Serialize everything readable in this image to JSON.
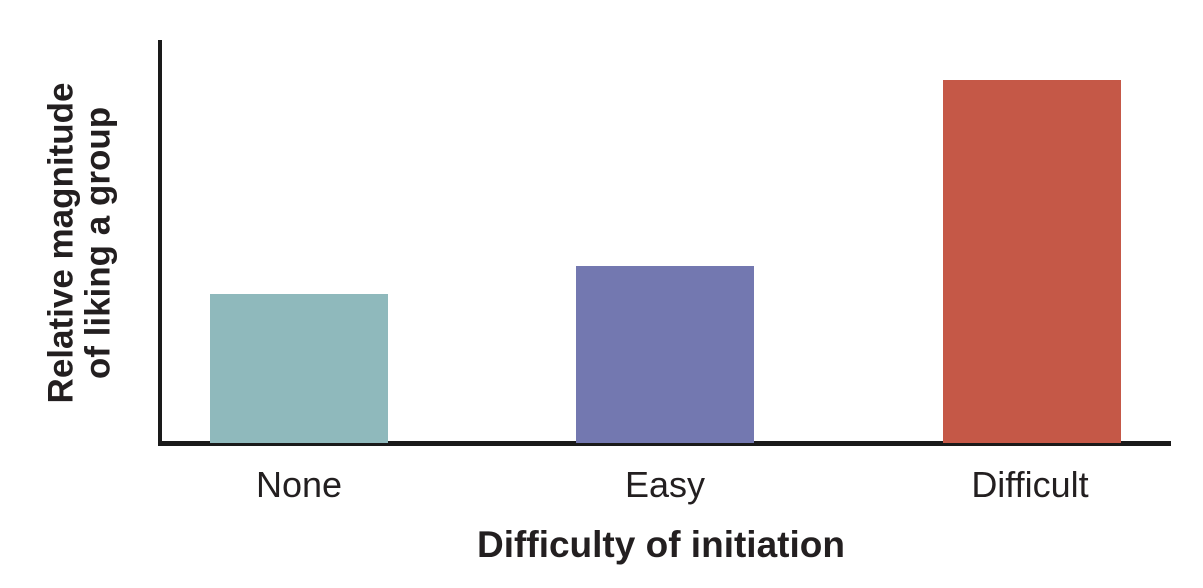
{
  "chart_data": {
    "type": "bar",
    "categories": [
      "None",
      "Easy",
      "Difficult"
    ],
    "values": [
      0.37,
      0.44,
      0.9
    ],
    "colors": [
      "#8FB9BC",
      "#7378B0",
      "#C55847"
    ],
    "title": "",
    "xlabel": "Difficulty of initiation",
    "ylabel": "Relative magnitude of liking a group",
    "ylim": [
      0,
      1
    ],
    "grid": false,
    "legend": false,
    "y_tick_labels": [],
    "x_tick_labels": [
      "None",
      "Easy",
      "Difficult"
    ]
  },
  "labels": {
    "y_line1": "Relative magnitude",
    "y_line2": "of liking a group"
  },
  "colors": {
    "axis": "#1A1A1A",
    "text": "#231F20",
    "background": "#FFFFFF"
  }
}
